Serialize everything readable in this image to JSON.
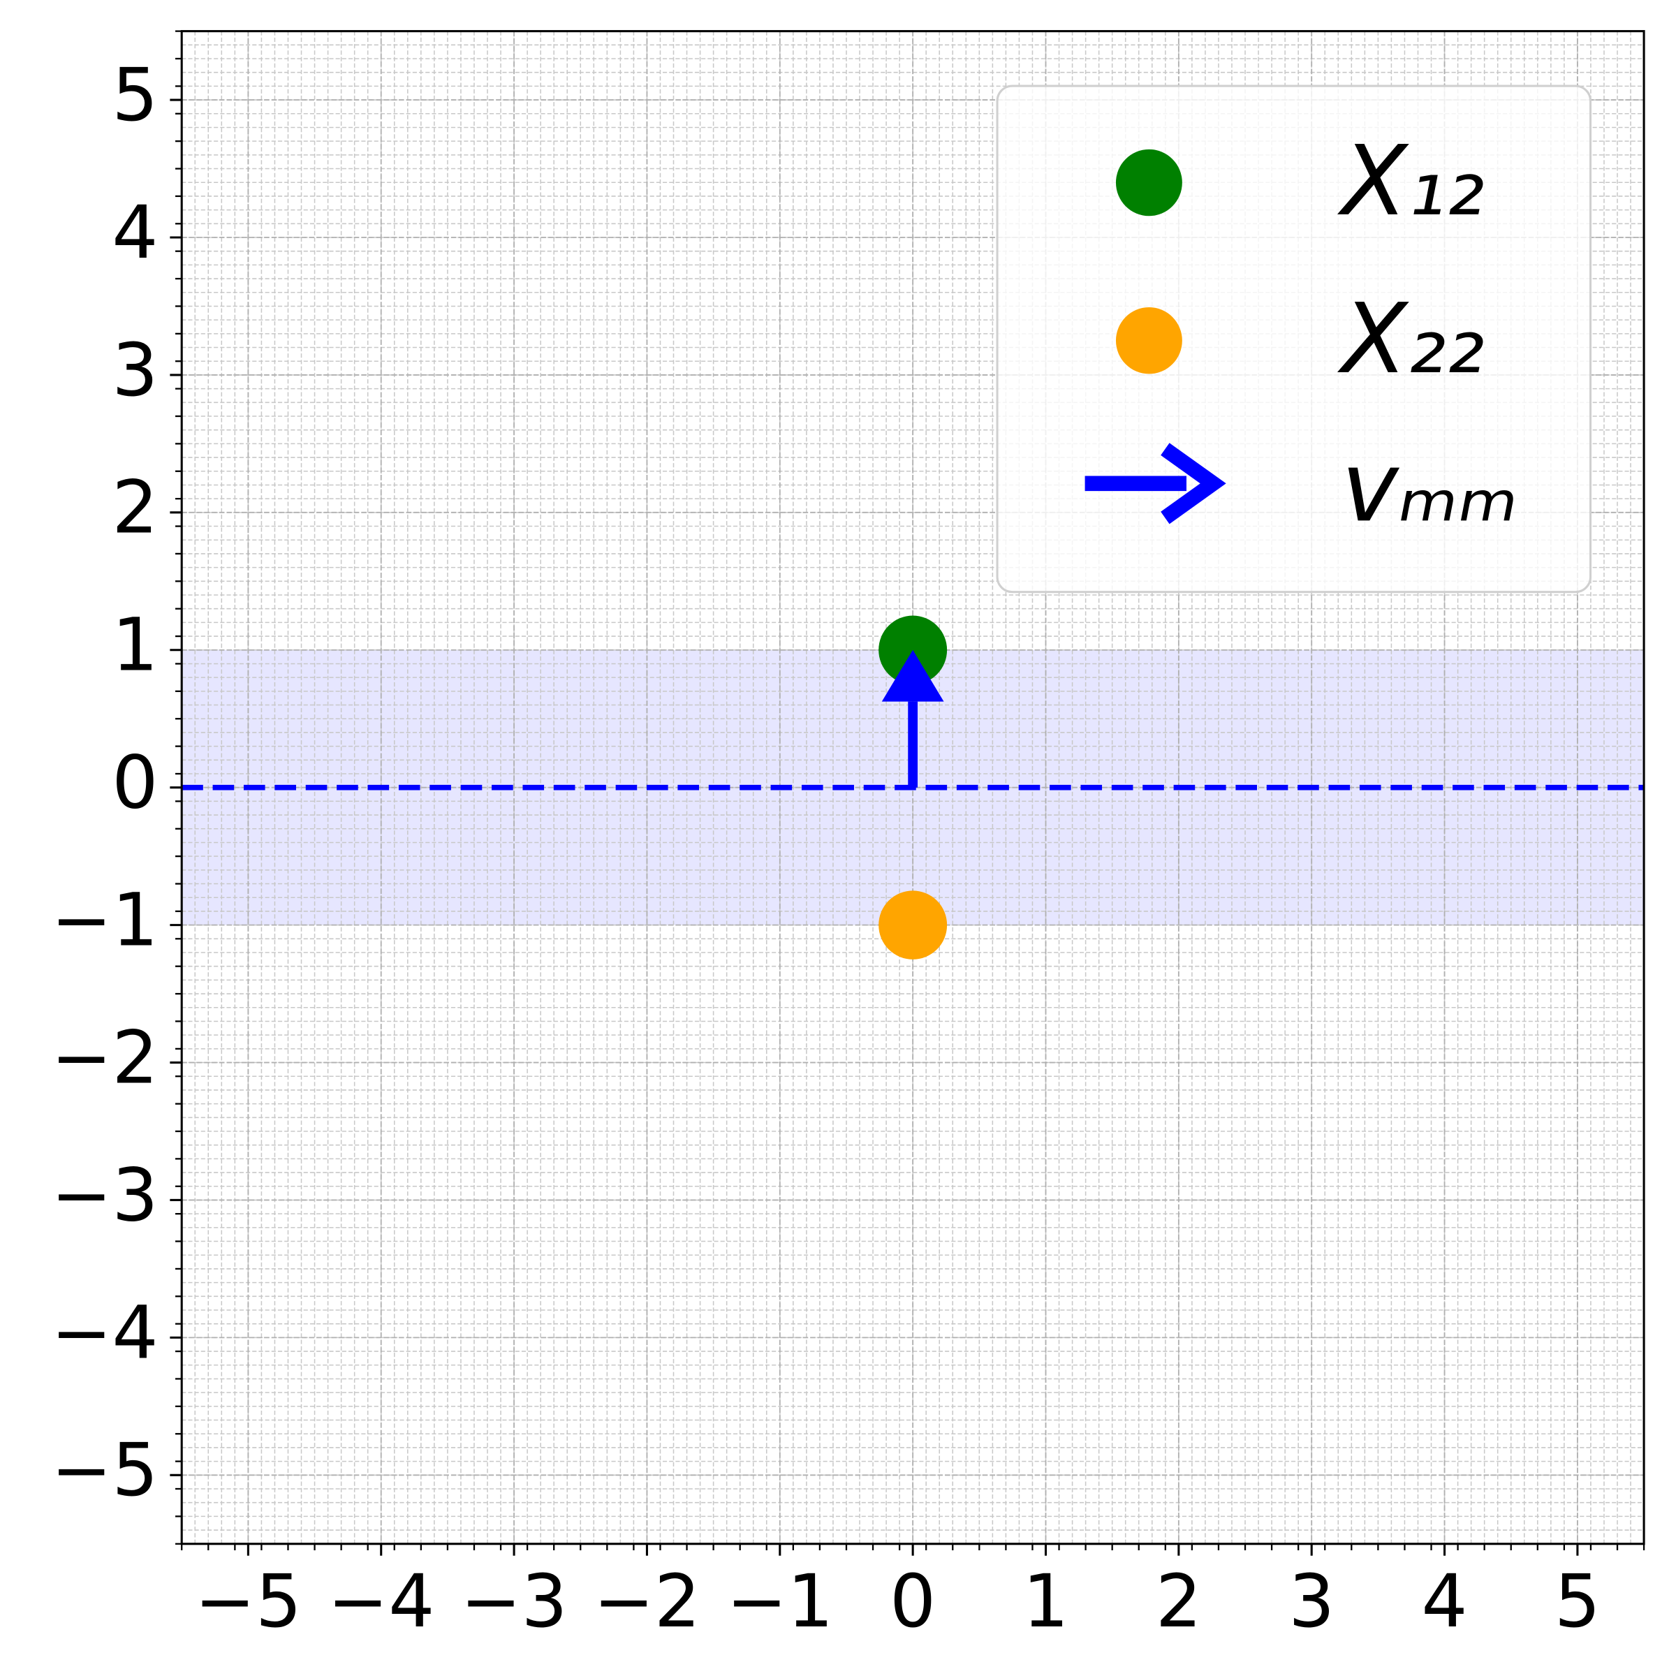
{
  "chart_data": {
    "type": "scatter",
    "xlim": [
      -5.5,
      5.5
    ],
    "ylim": [
      -5.5,
      5.5
    ],
    "xticks": [
      {
        "value": -5,
        "label": "−5"
      },
      {
        "value": -4,
        "label": "−4"
      },
      {
        "value": -3,
        "label": "−3"
      },
      {
        "value": -2,
        "label": "−2"
      },
      {
        "value": -1,
        "label": "−1"
      },
      0,
      1,
      2,
      3,
      4,
      5
    ],
    "yticks": [
      {
        "value": -5,
        "label": "−5"
      },
      {
        "value": -4,
        "label": "−4"
      },
      {
        "value": -3,
        "label": "−3"
      },
      {
        "value": -2,
        "label": "−2"
      },
      {
        "value": -1,
        "label": "−1"
      },
      0,
      1,
      2,
      3,
      4,
      5
    ],
    "grid": true,
    "minor_step": 0.1,
    "legend": "upper right",
    "band": {
      "y": [
        -1,
        1
      ],
      "color": "#e6e6ff"
    },
    "hline": {
      "y": 0,
      "color": "#0000ff"
    },
    "series": [
      {
        "name": "X₁₂",
        "color": "#008000",
        "x": [
          0
        ],
        "values": [
          1
        ]
      },
      {
        "name": "X₂₂",
        "color": "#ffa500",
        "x": [
          0
        ],
        "values": [
          -1
        ]
      }
    ],
    "arrow": {
      "name": "vₘₘ",
      "color": "#0000ff",
      "x": 0,
      "y": 0,
      "dx": 0,
      "dy": 1
    }
  }
}
